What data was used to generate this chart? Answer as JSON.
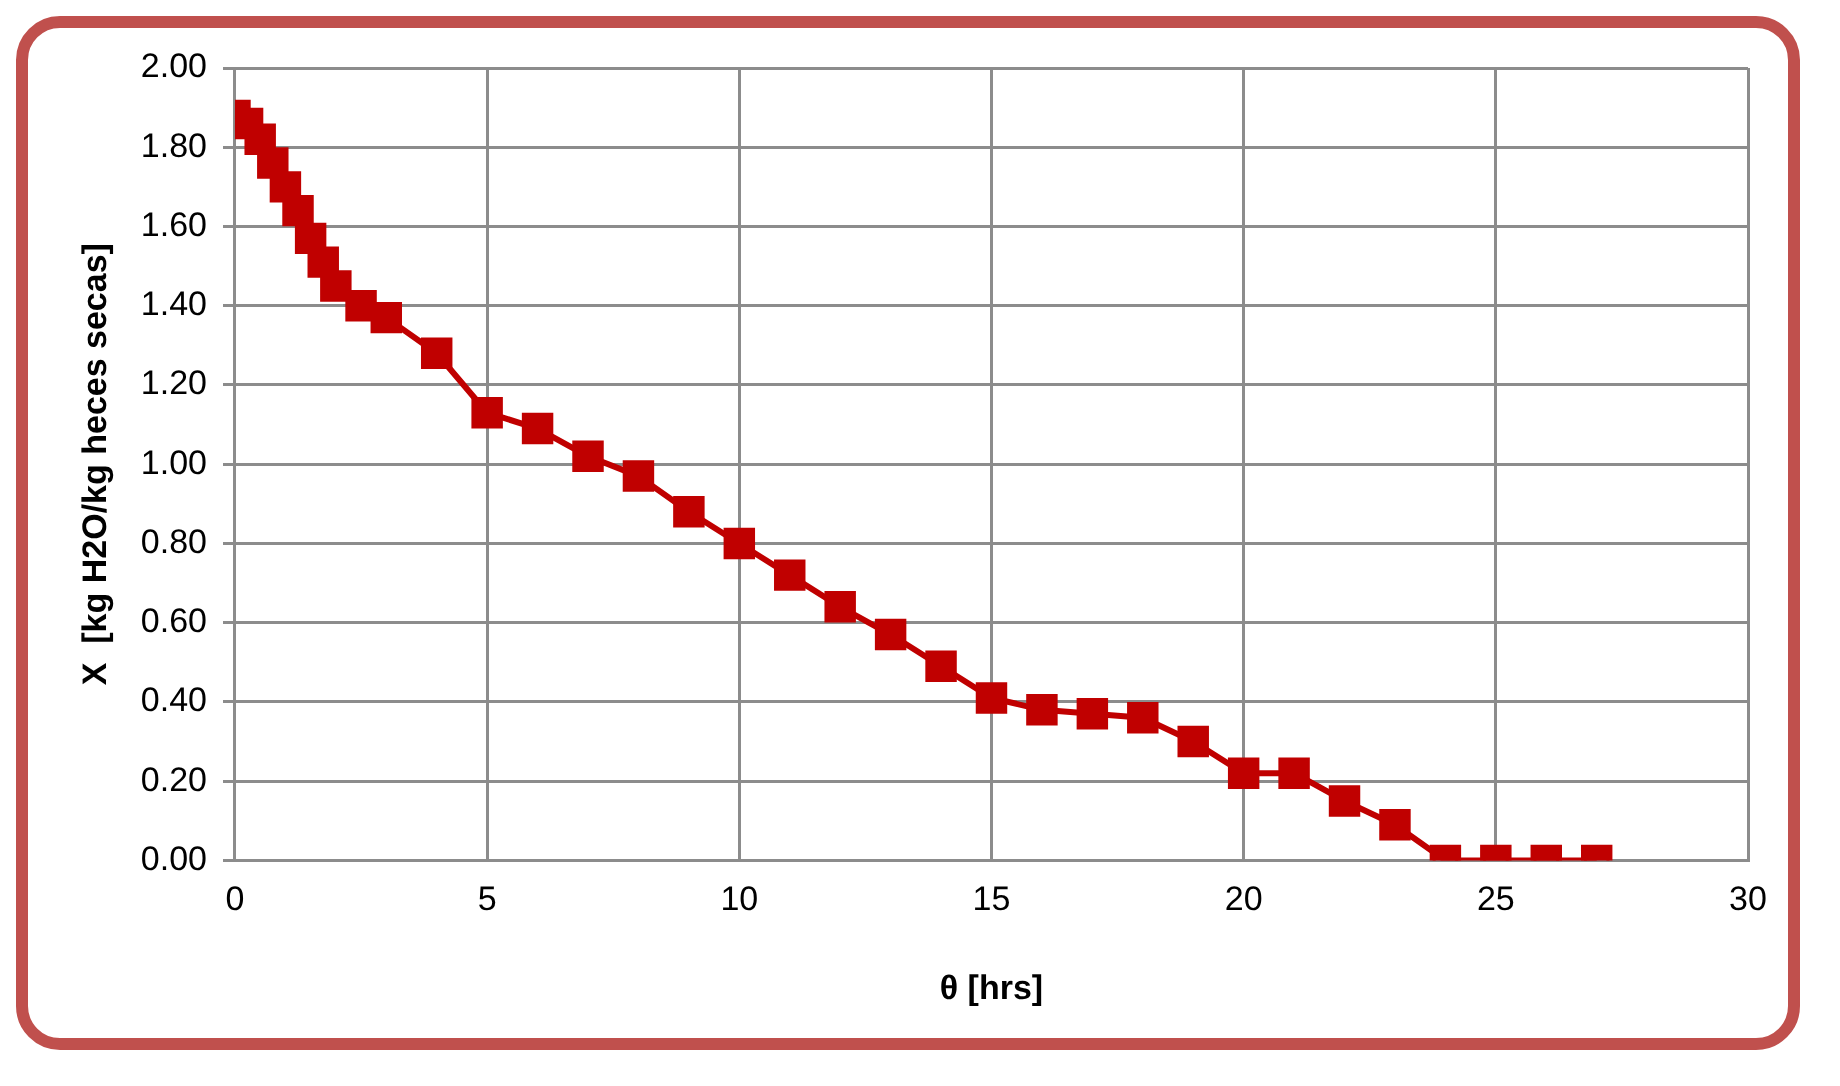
{
  "chart_data": {
    "type": "line",
    "xlabel": "θ [hrs]",
    "ylabel": "X  [kg H2O/kg heces secas]",
    "x": [
      0,
      0.25,
      0.5,
      0.75,
      1,
      1.25,
      1.5,
      1.75,
      2,
      2.5,
      3,
      4,
      5,
      6,
      7,
      8,
      9,
      10,
      11,
      12,
      13,
      14,
      15,
      16,
      17,
      18,
      19,
      20,
      21,
      22,
      23,
      24,
      25,
      26,
      27
    ],
    "series": [
      {
        "color": "#c00000",
        "values": [
          1.88,
          1.86,
          1.82,
          1.76,
          1.7,
          1.64,
          1.57,
          1.51,
          1.45,
          1.4,
          1.37,
          1.28,
          1.13,
          1.09,
          1.02,
          0.97,
          0.88,
          0.8,
          0.72,
          0.64,
          0.57,
          0.49,
          0.41,
          0.38,
          0.37,
          0.36,
          0.3,
          0.22,
          0.22,
          0.15,
          0.09,
          0,
          0,
          0,
          0
        ]
      }
    ],
    "xlim": [
      0,
      30
    ],
    "xticks": [
      0,
      5,
      10,
      15,
      20,
      25,
      30
    ],
    "ylim": [
      0,
      2
    ],
    "yticks": [
      {
        "value": 0,
        "label": "0.00"
      },
      {
        "value": 0.2,
        "label": "0.20"
      },
      {
        "value": 0.4,
        "label": "0.40"
      },
      {
        "value": 0.6,
        "label": "0.60"
      },
      {
        "value": 0.8,
        "label": "0.80"
      },
      {
        "value": 1,
        "label": "1.00"
      },
      {
        "value": 1.2,
        "label": "1.20"
      },
      {
        "value": 1.4,
        "label": "1.40"
      },
      {
        "value": 1.6,
        "label": "1.60"
      },
      {
        "value": 1.8,
        "label": "1.80"
      },
      {
        "value": 2,
        "label": "2.00"
      }
    ],
    "grid": true,
    "legend": false,
    "marker": "square",
    "line_style": "solid"
  }
}
